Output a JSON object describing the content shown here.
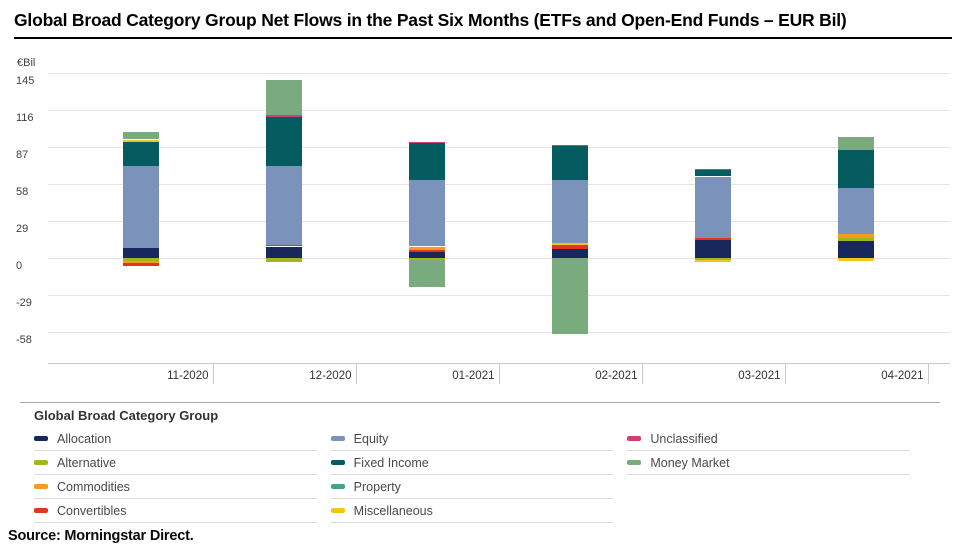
{
  "title": "Global Broad Category Group Net Flows in the Past Six Months (ETFs and Open-End Funds – EUR Bil)",
  "source": "Source: Morningstar Direct.",
  "legend": {
    "title": "Global Broad Category Group",
    "columns": [
      [
        {
          "key": "allocation",
          "label": "Allocation"
        },
        {
          "key": "alternative",
          "label": "Alternative"
        },
        {
          "key": "commodities",
          "label": "Commodities"
        },
        {
          "key": "convertibles",
          "label": "Convertibles"
        }
      ],
      [
        {
          "key": "equity",
          "label": "Equity"
        },
        {
          "key": "fixed_income",
          "label": "Fixed Income"
        },
        {
          "key": "property",
          "label": "Property"
        },
        {
          "key": "miscellaneous",
          "label": "Miscellaneous"
        }
      ],
      [
        {
          "key": "unclassified",
          "label": "Unclassified"
        },
        {
          "key": "money_market",
          "label": "Money Market"
        }
      ]
    ]
  },
  "colors": {
    "allocation": "#18285c",
    "alternative": "#a3b71c",
    "commodities": "#f59b22",
    "convertibles": "#e0351f",
    "equity": "#7b93ba",
    "fixed_income": "#045c61",
    "property": "#45a386",
    "miscellaneous": "#f2c51d",
    "unclassified": "#d4406e",
    "money_market": "#79ab7e"
  },
  "chart_data": {
    "type": "bar",
    "stacked": true,
    "title": "Global Broad Category Group Net Flows in the Past Six Months (ETFs and Open-End Funds – EUR Bil)",
    "xlabel": "",
    "ylabel": "€Bil",
    "y_axis_unit": "€Bil",
    "y_ticks": [
      145,
      116,
      87,
      58,
      29,
      0,
      -29,
      -58
    ],
    "ylim": [
      -70,
      150
    ],
    "grid": "horizontal",
    "legend_position": "bottom",
    "categories": [
      "11-2020",
      "12-2020",
      "01-2021",
      "02-2021",
      "03-2021",
      "04-2021"
    ],
    "series": [
      {
        "name": "Allocation",
        "key": "allocation",
        "values": [
          8,
          9,
          5,
          7,
          14,
          13
        ]
      },
      {
        "name": "Alternative",
        "key": "alternative",
        "values": [
          -2,
          -3,
          -1.5,
          0,
          -1.5,
          2.5
        ]
      },
      {
        "name": "Commodities",
        "key": "commodities",
        "values": [
          -2,
          0,
          2.5,
          0,
          0,
          3.5
        ]
      },
      {
        "name": "Convertibles",
        "key": "convertibles",
        "values": [
          -2,
          1.5,
          1.5,
          3,
          2,
          0
        ]
      },
      {
        "name": "Equity",
        "key": "equity",
        "values": [
          64,
          62,
          52,
          49,
          48,
          36
        ]
      },
      {
        "name": "Fixed Income",
        "key": "fixed_income",
        "values": [
          19,
          38,
          29,
          27,
          5,
          30
        ]
      },
      {
        "name": "Property",
        "key": "property",
        "values": [
          0,
          0,
          0,
          0,
          0,
          0
        ]
      },
      {
        "name": "Miscellaneous",
        "key": "miscellaneous",
        "values": [
          2,
          0,
          0,
          2,
          -1.5,
          -2
        ]
      },
      {
        "name": "Unclassified",
        "key": "unclassified",
        "values": [
          0,
          1.5,
          1,
          1,
          1,
          0
        ]
      },
      {
        "name": "Money Market",
        "key": "money_market",
        "values": [
          6,
          28,
          -21,
          -60,
          0,
          10
        ]
      }
    ],
    "bars": [
      {
        "month": "11-2020",
        "positive_segments": [
          {
            "c": "allocation",
            "v": 8
          },
          {
            "c": "equity",
            "v": 64
          },
          {
            "c": "fixed_income",
            "v": 19
          },
          {
            "c": "miscellaneous",
            "v": 2
          },
          {
            "c": "money_market",
            "v": 6
          }
        ],
        "negative_segments": [
          {
            "c": "alternative",
            "v": -2
          },
          {
            "c": "commodities",
            "v": -2
          },
          {
            "c": "convertibles",
            "v": -2
          }
        ]
      },
      {
        "month": "12-2020",
        "positive_segments": [
          {
            "c": "allocation",
            "v": 9
          },
          {
            "c": "convertibles",
            "v": 1.5
          },
          {
            "c": "equity",
            "v": 62
          },
          {
            "c": "fixed_income",
            "v": 38
          },
          {
            "c": "unclassified",
            "v": 1.5
          },
          {
            "c": "money_market",
            "v": 28
          }
        ],
        "negative_segments": [
          {
            "c": "alternative",
            "v": -3
          }
        ]
      },
      {
        "month": "01-2021",
        "positive_segments": [
          {
            "c": "allocation",
            "v": 5
          },
          {
            "c": "convertibles",
            "v": 1.5
          },
          {
            "c": "commodities",
            "v": 2.5
          },
          {
            "c": "equity",
            "v": 52
          },
          {
            "c": "fixed_income",
            "v": 29
          },
          {
            "c": "unclassified",
            "v": 1
          }
        ],
        "negative_segments": [
          {
            "c": "alternative",
            "v": -1.5
          },
          {
            "c": "money_market",
            "v": -21
          }
        ]
      },
      {
        "month": "02-2021",
        "positive_segments": [
          {
            "c": "allocation",
            "v": 7
          },
          {
            "c": "convertibles",
            "v": 3
          },
          {
            "c": "miscellaneous",
            "v": 2
          },
          {
            "c": "equity",
            "v": 49
          },
          {
            "c": "fixed_income",
            "v": 27
          },
          {
            "c": "unclassified",
            "v": 1
          }
        ],
        "negative_segments": [
          {
            "c": "money_market",
            "v": -60
          }
        ]
      },
      {
        "month": "03-2021",
        "positive_segments": [
          {
            "c": "allocation",
            "v": 14
          },
          {
            "c": "convertibles",
            "v": 2
          },
          {
            "c": "equity",
            "v": 48
          },
          {
            "c": "fixed_income",
            "v": 5
          },
          {
            "c": "unclassified",
            "v": 1
          }
        ],
        "negative_segments": [
          {
            "c": "alternative",
            "v": -1.5
          },
          {
            "c": "miscellaneous",
            "v": -1.5
          }
        ]
      },
      {
        "month": "04-2021",
        "positive_segments": [
          {
            "c": "allocation",
            "v": 13
          },
          {
            "c": "alternative",
            "v": 2.5
          },
          {
            "c": "commodities",
            "v": 3.5
          },
          {
            "c": "equity",
            "v": 36
          },
          {
            "c": "fixed_income",
            "v": 30
          },
          {
            "c": "money_market",
            "v": 10
          }
        ],
        "negative_segments": [
          {
            "c": "miscellaneous",
            "v": -2
          }
        ]
      }
    ]
  }
}
